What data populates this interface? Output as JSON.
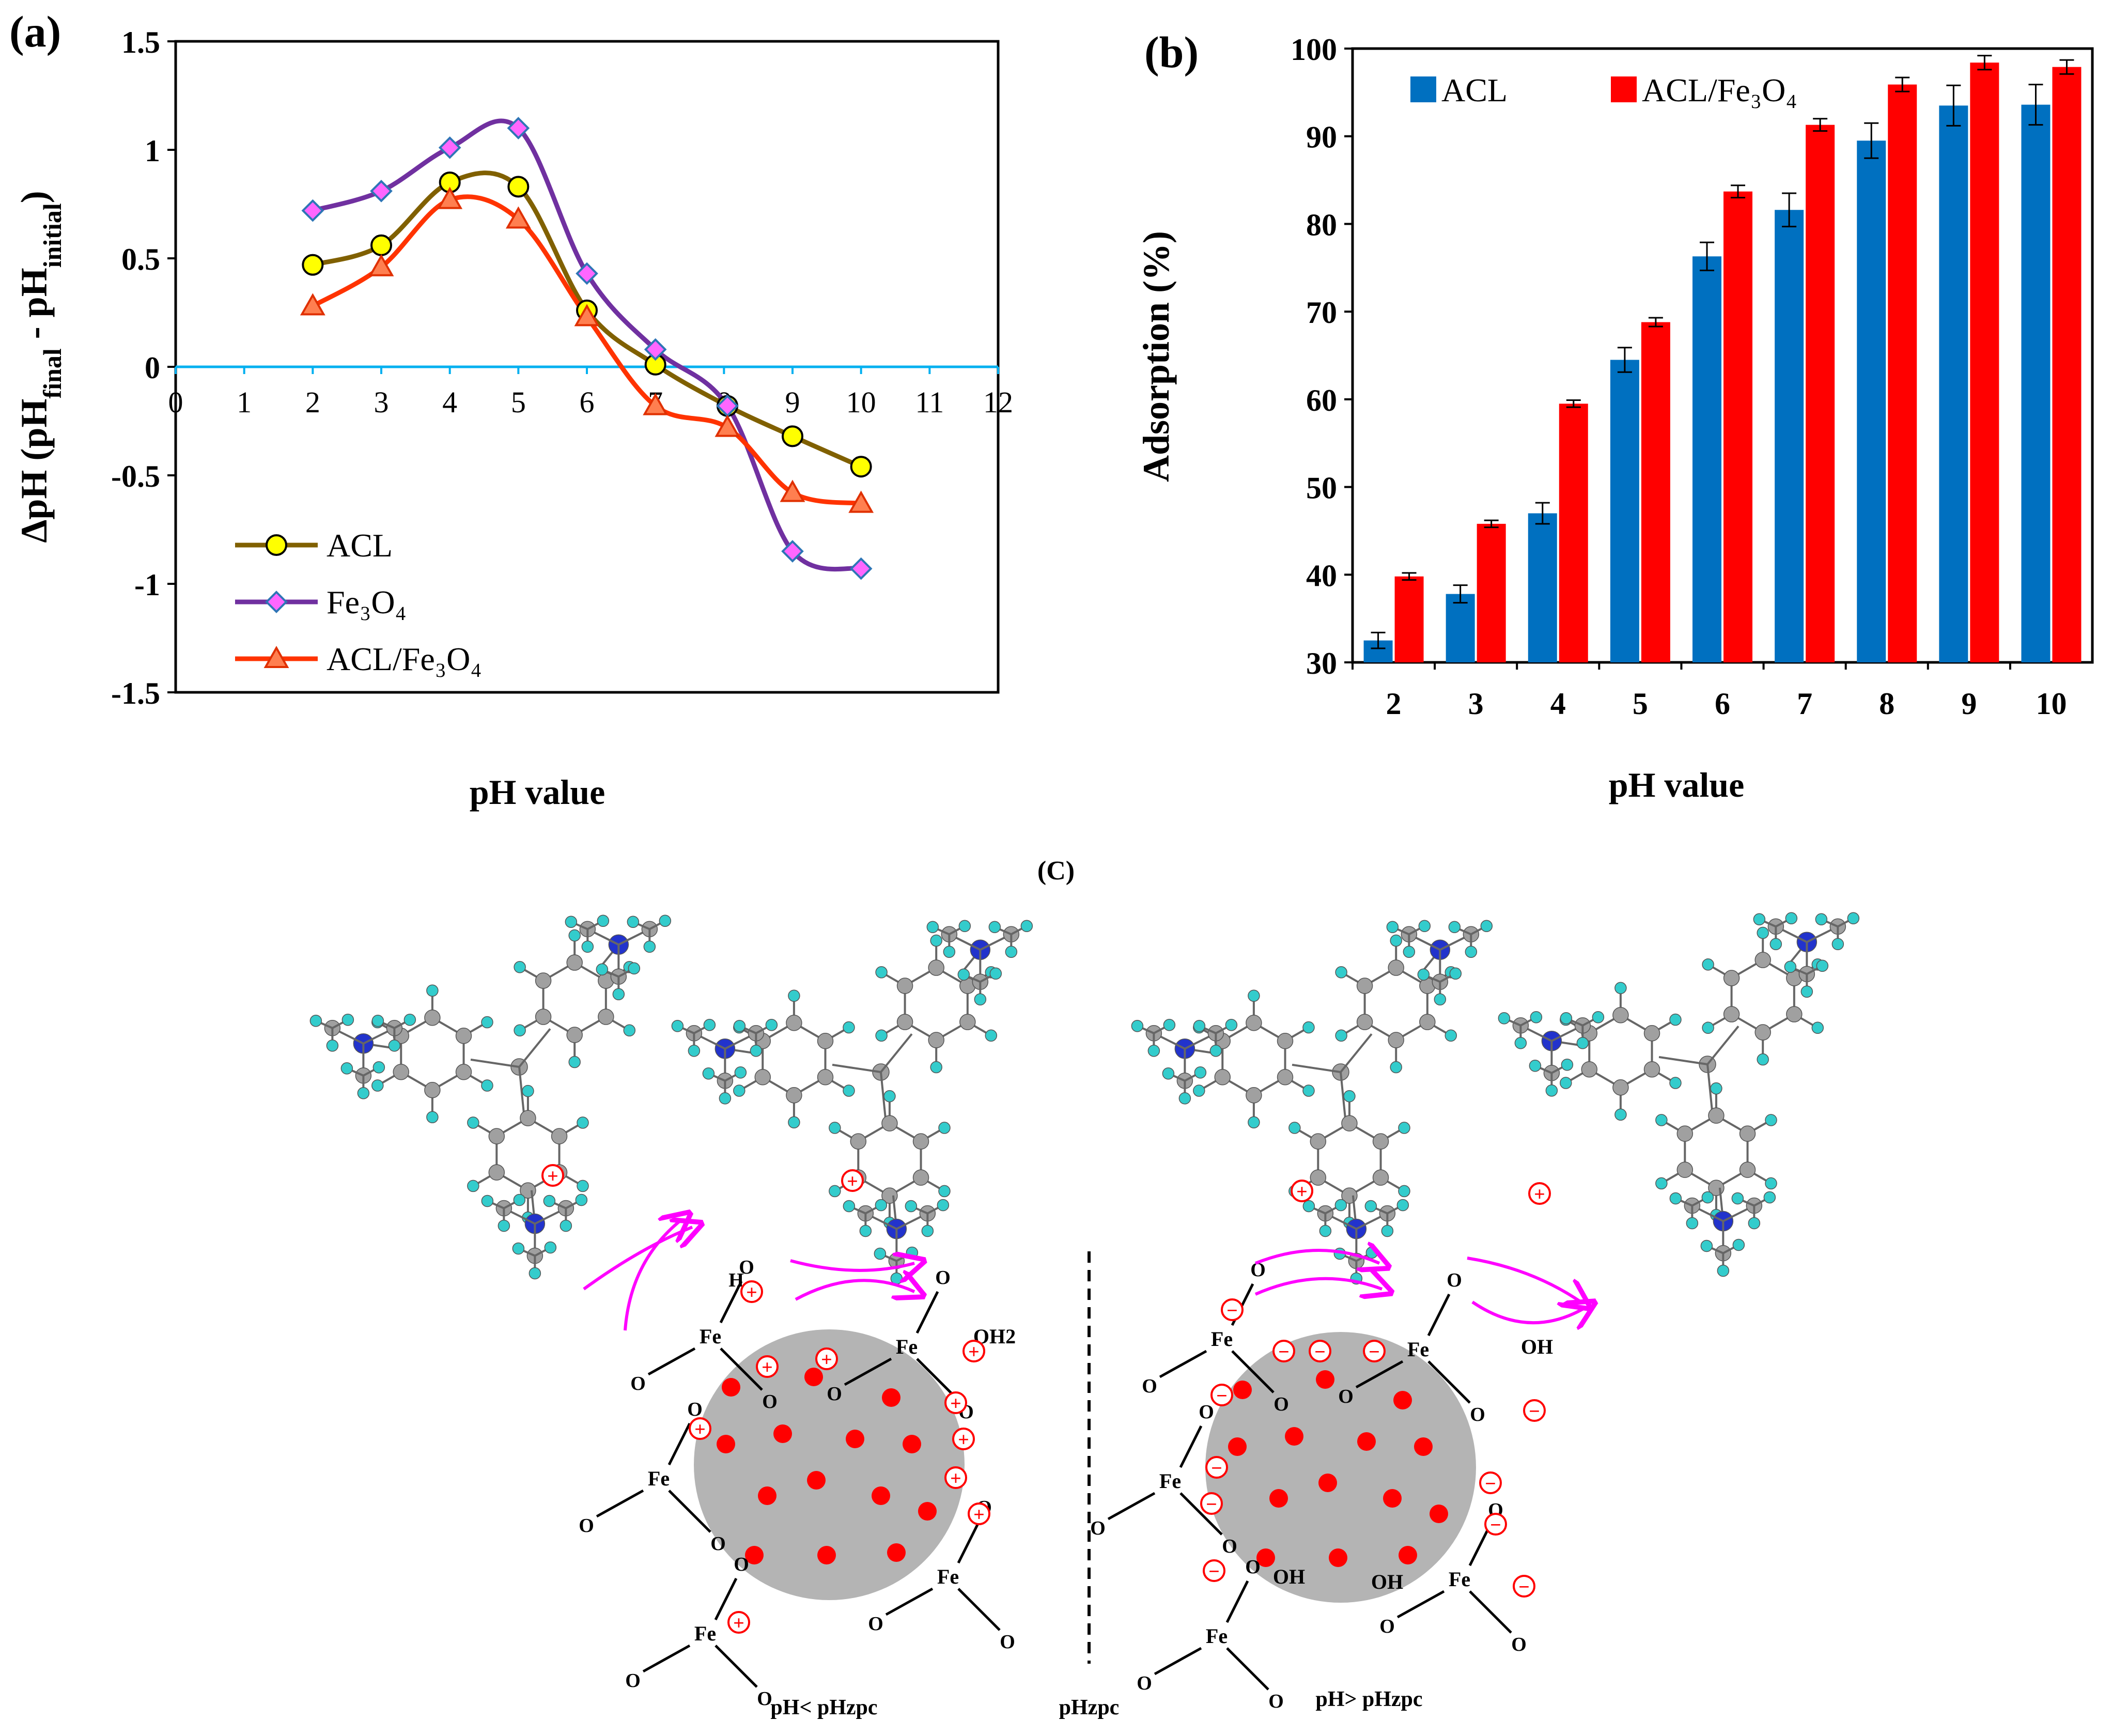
{
  "figure": {
    "panel_a_label": "(a)",
    "panel_b_label": "(b)",
    "panel_c_label": "(C)"
  },
  "colors": {
    "acl_line": "#806000",
    "acl_marker": "#ffff00",
    "fe3o4_line": "#7030a0",
    "fe3o4_marker": "#ff66ff",
    "fe3o4_marker_edge": "#2e75b6",
    "aclfe_line": "#ff3300",
    "aclfe_marker": "#ff7f50",
    "zero_line": "#00b0f0",
    "bar_acl": "#0070c0",
    "bar_aclfe": "#ff0000",
    "arrow": "#ff00ff",
    "particle": "#b4b4b4",
    "particle_dot": "#ff0000",
    "charge": "#ff0000",
    "carbon_atom": "#a0a0a0",
    "hydrogen_atom": "#33cccc",
    "nitrogen_atom": "#2233cc"
  },
  "chart_data": [
    {
      "id": "a",
      "type": "line",
      "title": "",
      "xlabel": "pH value",
      "ylabel_main": "ΔpH (pH",
      "ylabel_sub1": "final",
      "ylabel_mid": " - pH",
      "ylabel_sub2": "initial",
      "ylabel_end": ")",
      "xlim": [
        0,
        12
      ],
      "ylim": [
        -1.5,
        1.5
      ],
      "xticks": [
        "0",
        "1",
        "2",
        "3",
        "4",
        "5",
        "6",
        "7",
        "8",
        "9",
        "10",
        "11",
        "12"
      ],
      "yticks": [
        "1.5",
        "1",
        "0.5",
        "0",
        "-0.5",
        "-1",
        "-1.5"
      ],
      "ytick_values": [
        1.5,
        1,
        0.5,
        0,
        -0.5,
        -1,
        -1.5
      ],
      "grid": false,
      "legend_position": "bottom-left",
      "series": [
        {
          "name": "ACL",
          "marker": "circle",
          "x": [
            2,
            3,
            4,
            5,
            6,
            7,
            8.05,
            9,
            10
          ],
          "y": [
            0.47,
            0.56,
            0.85,
            0.83,
            0.26,
            0.01,
            -0.18,
            -0.32,
            -0.46
          ]
        },
        {
          "name": "Fe₃O₄",
          "marker": "diamond",
          "x": [
            2,
            3,
            4,
            5,
            6,
            7,
            8.05,
            9,
            10
          ],
          "y": [
            0.72,
            0.81,
            1.01,
            1.1,
            0.43,
            0.08,
            -0.18,
            -0.85,
            -0.93
          ]
        },
        {
          "name": "ACL/Fe₃O₄",
          "marker": "triangle",
          "x": [
            2,
            3,
            4,
            5,
            6,
            7,
            8.05,
            9,
            10
          ],
          "y": [
            0.28,
            0.46,
            0.77,
            0.68,
            0.23,
            -0.18,
            -0.28,
            -0.58,
            -0.63
          ]
        }
      ]
    },
    {
      "id": "b",
      "type": "bar",
      "title": "",
      "xlabel": "pH value",
      "ylabel": "Adsorption (%)",
      "ylim": [
        30,
        100
      ],
      "yticks": [
        "100",
        "90",
        "80",
        "70",
        "60",
        "50",
        "40",
        "30"
      ],
      "ytick_values": [
        100,
        90,
        80,
        70,
        60,
        50,
        40,
        30
      ],
      "categories": [
        "2",
        "3",
        "4",
        "5",
        "6",
        "7",
        "8",
        "9",
        "10"
      ],
      "legend_position": "top",
      "series": [
        {
          "name": "ACL",
          "values": [
            32.5,
            37.8,
            47.0,
            64.5,
            76.3,
            81.6,
            89.5,
            93.5,
            93.6
          ],
          "errors": [
            0.9,
            1.0,
            1.2,
            1.4,
            1.6,
            1.9,
            2.0,
            2.3,
            2.3
          ]
        },
        {
          "name": "ACL/Fe₃O₄",
          "values": [
            39.8,
            45.8,
            59.5,
            68.8,
            83.7,
            91.3,
            95.9,
            98.4,
            97.9
          ],
          "errors": [
            0.4,
            0.4,
            0.4,
            0.5,
            0.7,
            0.7,
            0.8,
            0.8,
            0.8
          ]
        }
      ]
    }
  ],
  "diagram": {
    "fe": "Fe",
    "o": "O",
    "h": "H",
    "oh": "OH",
    "oh2": "OH2",
    "plus": "+",
    "minus": "−",
    "label_below": "pH< pHzpc",
    "label_mid": "pHzpc",
    "label_above": "pH> pHzpc"
  }
}
